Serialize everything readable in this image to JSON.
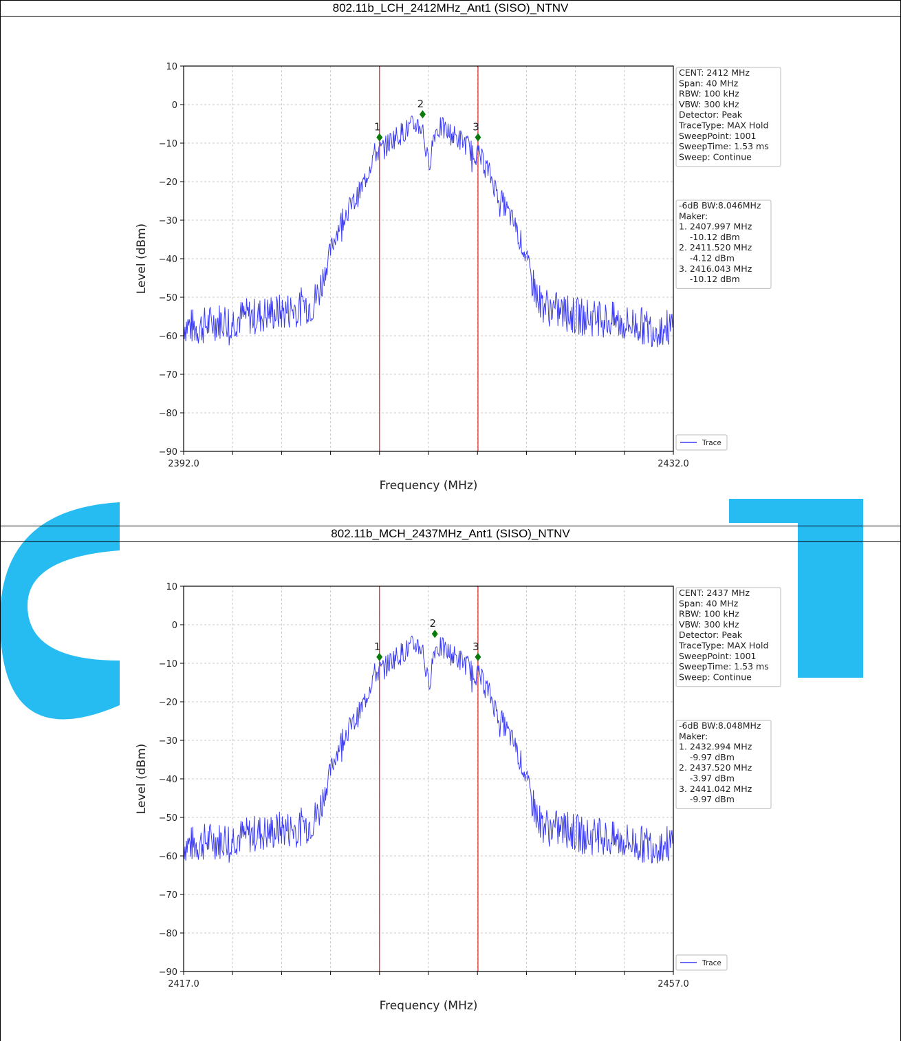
{
  "colors": {
    "trace": "#3b3bf5",
    "marker": "#0a7a0a",
    "vline": "#e03030",
    "watermark": "#00b0f0"
  },
  "chart_data": [
    {
      "type": "line",
      "title": "802.11b_LCH_2412MHz_Ant1 (SISO)_NTNV",
      "xlabel": "Frequency (MHz)",
      "ylabel": "Level (dBm)",
      "xlim": [
        2392.0,
        2432.0
      ],
      "ylim": [
        -90,
        10
      ],
      "x_tick_labels": [
        "2392.0",
        "2432.0"
      ],
      "y_ticks": [
        10,
        0,
        -10,
        -20,
        -30,
        -40,
        -50,
        -60,
        -70,
        -80,
        -90
      ],
      "y_tick_labels": [
        "10",
        "0",
        "−10",
        "−20",
        "−30",
        "−40",
        "−50",
        "−60",
        "−70",
        "−80",
        "−90"
      ],
      "grid": true,
      "legend": {
        "position": "bottom-right",
        "entries": [
          "Trace"
        ]
      },
      "info_lines": [
        "CENT: 2412 MHz",
        "Span: 40 MHz",
        "RBW: 100 kHz",
        "VBW: 300 kHz",
        "Detector: Peak",
        "TraceType: MAX Hold",
        "SweepPoint: 1001",
        "SweepTime: 1.53 ms",
        "Sweep: Continue"
      ],
      "marker_lines": [
        "-6dB BW:8.046MHz",
        "Maker:",
        "1. 2407.997 MHz",
        "    -10.12 dBm",
        "2. 2411.520 MHz",
        "    -4.12 dBm",
        "3. 2416.043 MHz",
        "    -10.12 dBm"
      ],
      "vlines": [
        2407.997,
        2416.043
      ],
      "markers": [
        {
          "label": "1",
          "x": 2407.997,
          "y": -10.12
        },
        {
          "label": "2",
          "x": 2411.52,
          "y": -4.12
        },
        {
          "label": "3",
          "x": 2416.043,
          "y": -10.12
        }
      ],
      "series": [
        {
          "name": "Trace",
          "x": [
            2392.0,
            2393.0,
            2394.0,
            2395.0,
            2396.0,
            2397.0,
            2398.0,
            2399.0,
            2400.0,
            2401.0,
            2402.0,
            2402.5,
            2403.0,
            2403.5,
            2404.0,
            2404.5,
            2405.0,
            2405.5,
            2406.0,
            2406.5,
            2407.0,
            2407.5,
            2408.0,
            2408.5,
            2409.0,
            2409.5,
            2410.0,
            2410.5,
            2411.0,
            2411.5,
            2412.0,
            2412.5,
            2413.0,
            2413.5,
            2414.0,
            2414.5,
            2415.0,
            2415.5,
            2416.0,
            2416.5,
            2417.0,
            2417.5,
            2418.0,
            2418.5,
            2419.0,
            2419.5,
            2420.0,
            2420.5,
            2421.0,
            2421.5,
            2422.0,
            2423.0,
            2424.0,
            2425.0,
            2426.0,
            2427.0,
            2428.0,
            2429.0,
            2430.0,
            2431.0,
            2432.0
          ],
          "y": [
            -57,
            -58,
            -57,
            -56,
            -56,
            -55,
            -55,
            -54,
            -54,
            -53,
            -52,
            -52,
            -49,
            -44,
            -38,
            -33,
            -29,
            -27,
            -25,
            -22,
            -18,
            -13,
            -12,
            -11,
            -9,
            -8,
            -7,
            -6,
            -5,
            -6,
            -16,
            -7,
            -6,
            -7,
            -8,
            -9,
            -10,
            -12,
            -13,
            -15,
            -18,
            -22,
            -25,
            -28,
            -31,
            -35,
            -40,
            -46,
            -51,
            -52,
            -53,
            -54,
            -55,
            -55,
            -56,
            -56,
            -57,
            -57,
            -58,
            -58,
            -58
          ]
        }
      ]
    },
    {
      "type": "line",
      "title": "802.11b_MCH_2437MHz_Ant1 (SISO)_NTNV",
      "xlabel": "Frequency (MHz)",
      "ylabel": "Level (dBm)",
      "xlim": [
        2417.0,
        2457.0
      ],
      "ylim": [
        -90,
        10
      ],
      "x_tick_labels": [
        "2417.0",
        "2457.0"
      ],
      "y_ticks": [
        10,
        0,
        -10,
        -20,
        -30,
        -40,
        -50,
        -60,
        -70,
        -80,
        -90
      ],
      "y_tick_labels": [
        "10",
        "0",
        "−10",
        "−20",
        "−30",
        "−40",
        "−50",
        "−60",
        "−70",
        "−80",
        "−90"
      ],
      "grid": true,
      "legend": {
        "position": "bottom-right",
        "entries": [
          "Trace"
        ]
      },
      "info_lines": [
        "CENT: 2437 MHz",
        "Span: 40 MHz",
        "RBW: 100 kHz",
        "VBW: 300 kHz",
        "Detector: Peak",
        "TraceType: MAX Hold",
        "SweepPoint: 1001",
        "SweepTime: 1.53 ms",
        "Sweep: Continue"
      ],
      "marker_lines": [
        "-6dB BW:8.048MHz",
        "Maker:",
        "1. 2432.994 MHz",
        "    -9.97 dBm",
        "2. 2437.520 MHz",
        "    -3.97 dBm",
        "3. 2441.042 MHz",
        "    -9.97 dBm"
      ],
      "vlines": [
        2432.994,
        2441.042
      ],
      "markers": [
        {
          "label": "1",
          "x": 2432.994,
          "y": -9.97
        },
        {
          "label": "2",
          "x": 2437.52,
          "y": -3.97
        },
        {
          "label": "3",
          "x": 2441.042,
          "y": -9.97
        }
      ],
      "series": [
        {
          "name": "Trace",
          "x": [
            2417.0,
            2418.0,
            2419.0,
            2420.0,
            2421.0,
            2422.0,
            2423.0,
            2424.0,
            2425.0,
            2426.0,
            2427.0,
            2427.5,
            2428.0,
            2428.5,
            2429.0,
            2429.5,
            2430.0,
            2430.5,
            2431.0,
            2431.5,
            2432.0,
            2432.5,
            2433.0,
            2433.5,
            2434.0,
            2434.5,
            2435.0,
            2435.5,
            2436.0,
            2436.5,
            2437.0,
            2437.5,
            2438.0,
            2438.5,
            2439.0,
            2439.5,
            2440.0,
            2440.5,
            2441.0,
            2441.5,
            2442.0,
            2442.5,
            2443.0,
            2443.5,
            2444.0,
            2444.5,
            2445.0,
            2445.5,
            2446.0,
            2446.5,
            2447.0,
            2448.0,
            2449.0,
            2450.0,
            2451.0,
            2452.0,
            2453.0,
            2454.0,
            2455.0,
            2456.0,
            2457.0
          ],
          "y": [
            -57,
            -57,
            -56,
            -56,
            -55,
            -55,
            -54,
            -54,
            -53,
            -53,
            -52,
            -51,
            -49,
            -44,
            -38,
            -33,
            -29,
            -27,
            -25,
            -22,
            -18,
            -13,
            -12,
            -11,
            -9,
            -8,
            -7,
            -6,
            -5,
            -6,
            -16,
            -6,
            -6,
            -7,
            -8,
            -9,
            -10,
            -12,
            -13,
            -15,
            -18,
            -22,
            -25,
            -28,
            -31,
            -35,
            -40,
            -46,
            -51,
            -52,
            -53,
            -53,
            -54,
            -55,
            -55,
            -56,
            -56,
            -57,
            -57,
            -57,
            -57
          ]
        }
      ]
    }
  ]
}
